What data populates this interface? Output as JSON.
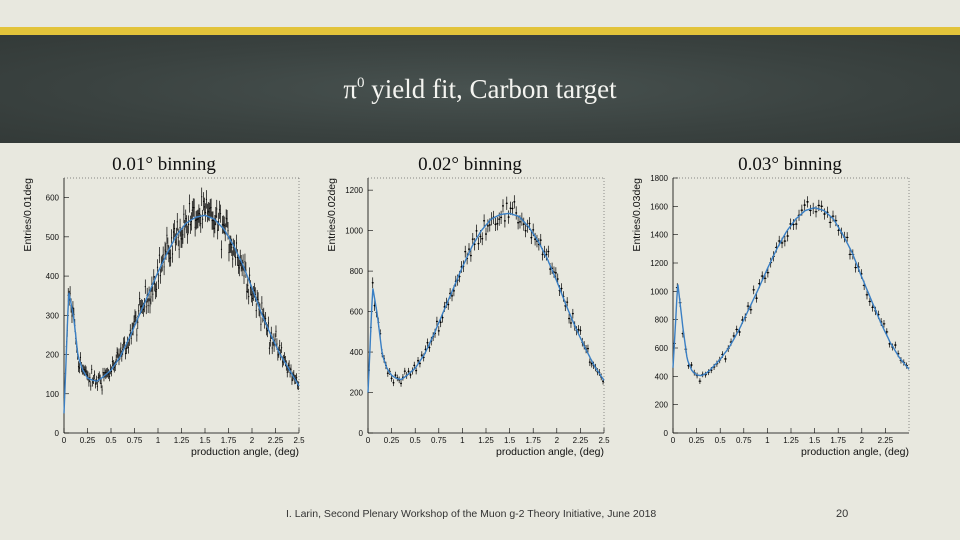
{
  "slide": {
    "title_symbol": "π",
    "title_sup": "0",
    "title_rest": " yield fit, Carbon target",
    "footer": "I. Larin, Second Plenary Workshop of the Muon g-2 Theory Initiative, June 2018",
    "page_number": "20",
    "colors": {
      "stripe": "#e2c33a",
      "header": "#3c4442",
      "fit": "#3a7fc4",
      "data": "#000000"
    }
  },
  "chart_data": [
    {
      "type": "scatter",
      "title": "0.01° binning",
      "xlabel": "production angle, (deg)",
      "ylabel": "Entries/0.01deg",
      "xlim": [
        0,
        2.5
      ],
      "ylim": [
        0,
        650
      ],
      "xticks": [
        0,
        0.25,
        0.5,
        0.75,
        1,
        1.25,
        1.5,
        1.75,
        2,
        2.25,
        2.5
      ],
      "xtick_labels": [
        "0",
        "0.25",
        "0.5",
        "0.75",
        "1",
        "1.25",
        "1.5",
        "1.75",
        "2",
        "2.25",
        "2.5"
      ],
      "yticks": [
        0,
        100,
        200,
        300,
        400,
        500,
        600
      ],
      "ytick_labels": [
        "0",
        "100",
        "200",
        "300",
        "400",
        "500",
        "600"
      ],
      "bin_width": 0.01,
      "series": [
        {
          "name": "data",
          "x": [
            0.0,
            0.05,
            0.1,
            0.15,
            0.2,
            0.25,
            0.3,
            0.35,
            0.4,
            0.5,
            0.6,
            0.7,
            0.8,
            0.9,
            1.0,
            1.1,
            1.2,
            1.3,
            1.4,
            1.5,
            1.6,
            1.7,
            1.8,
            1.9,
            2.0,
            2.1,
            2.2,
            2.3,
            2.4,
            2.5
          ],
          "y": [
            50,
            360,
            300,
            195,
            160,
            140,
            135,
            132,
            140,
            160,
            195,
            245,
            300,
            355,
            410,
            460,
            505,
            535,
            550,
            555,
            545,
            520,
            480,
            430,
            370,
            305,
            250,
            200,
            160,
            120
          ]
        },
        {
          "name": "fit",
          "x": [
            0.0,
            0.05,
            0.1,
            0.15,
            0.2,
            0.25,
            0.3,
            0.35,
            0.4,
            0.5,
            0.6,
            0.7,
            0.8,
            0.9,
            1.0,
            1.1,
            1.2,
            1.3,
            1.4,
            1.5,
            1.6,
            1.7,
            1.8,
            1.9,
            2.0,
            2.1,
            2.2,
            2.3,
            2.4,
            2.5
          ],
          "y": [
            50,
            360,
            300,
            195,
            160,
            140,
            135,
            132,
            140,
            160,
            195,
            245,
            300,
            355,
            410,
            460,
            505,
            535,
            550,
            555,
            545,
            520,
            480,
            430,
            370,
            305,
            250,
            200,
            160,
            120
          ]
        }
      ]
    },
    {
      "type": "scatter",
      "title": "0.02° binning",
      "xlabel": "production angle, (deg)",
      "ylabel": "Entries/0.02deg",
      "xlim": [
        0,
        2.5
      ],
      "ylim": [
        0,
        1260
      ],
      "xticks": [
        0,
        0.25,
        0.5,
        0.75,
        1,
        1.25,
        1.5,
        1.75,
        2,
        2.25,
        2.5
      ],
      "xtick_labels": [
        "0",
        "0.25",
        "0.5",
        "0.75",
        "1",
        "1.25",
        "1.5",
        "1.75",
        "2",
        "2.25",
        "2.5"
      ],
      "yticks": [
        0,
        200,
        400,
        600,
        800,
        1000,
        1200
      ],
      "ytick_labels": [
        "0",
        "200",
        "400",
        "600",
        "800",
        "1000",
        "1200"
      ],
      "bin_width": 0.02,
      "series": [
        {
          "name": "data",
          "x": [
            0.0,
            0.05,
            0.1,
            0.15,
            0.2,
            0.25,
            0.3,
            0.35,
            0.4,
            0.5,
            0.6,
            0.7,
            0.8,
            0.9,
            1.0,
            1.1,
            1.2,
            1.3,
            1.4,
            1.5,
            1.6,
            1.7,
            1.8,
            1.9,
            2.0,
            2.1,
            2.2,
            2.3,
            2.4,
            2.5
          ],
          "y": [
            200,
            720,
            580,
            390,
            320,
            285,
            270,
            264,
            280,
            320,
            390,
            490,
            600,
            710,
            820,
            920,
            1000,
            1055,
            1080,
            1085,
            1070,
            1020,
            950,
            860,
            750,
            630,
            520,
            420,
            330,
            260
          ]
        },
        {
          "name": "fit",
          "x": [
            0.0,
            0.05,
            0.1,
            0.15,
            0.2,
            0.25,
            0.3,
            0.35,
            0.4,
            0.5,
            0.6,
            0.7,
            0.8,
            0.9,
            1.0,
            1.1,
            1.2,
            1.3,
            1.4,
            1.5,
            1.6,
            1.7,
            1.8,
            1.9,
            2.0,
            2.1,
            2.2,
            2.3,
            2.4,
            2.5
          ],
          "y": [
            200,
            720,
            580,
            390,
            320,
            285,
            270,
            264,
            280,
            320,
            390,
            490,
            600,
            710,
            820,
            920,
            1000,
            1055,
            1080,
            1085,
            1070,
            1020,
            950,
            860,
            750,
            630,
            520,
            420,
            330,
            260
          ]
        }
      ]
    },
    {
      "type": "scatter",
      "title": "0.03° binning",
      "xlabel": "production angle, (deg)",
      "ylabel": "Entries/0.03deg",
      "xlim": [
        0,
        2.5
      ],
      "ylim": [
        0,
        1800
      ],
      "xticks": [
        0,
        0.25,
        0.5,
        0.75,
        1,
        1.25,
        1.5,
        1.75,
        2,
        2.25
      ],
      "xtick_labels": [
        "0",
        "0.25",
        "0.5",
        "0.75",
        "1",
        "1.25",
        "1.5",
        "1.75",
        "2",
        "2.25"
      ],
      "yticks": [
        0,
        200,
        400,
        600,
        800,
        1000,
        1200,
        1400,
        1600,
        1800
      ],
      "ytick_labels": [
        "0",
        "200",
        "400",
        "600",
        "800",
        "1000",
        "1200",
        "1400",
        "1600",
        "1800"
      ],
      "bin_width": 0.03,
      "series": [
        {
          "name": "data",
          "x": [
            0.0,
            0.05,
            0.1,
            0.15,
            0.2,
            0.25,
            0.3,
            0.35,
            0.4,
            0.5,
            0.6,
            0.7,
            0.8,
            0.9,
            1.0,
            1.1,
            1.2,
            1.3,
            1.4,
            1.5,
            1.6,
            1.7,
            1.8,
            1.9,
            2.0,
            2.1,
            2.2,
            2.3,
            2.4,
            2.5
          ],
          "y": [
            460,
            1060,
            770,
            520,
            440,
            410,
            405,
            420,
            450,
            520,
            610,
            730,
            870,
            1010,
            1160,
            1300,
            1420,
            1510,
            1570,
            1590,
            1570,
            1510,
            1400,
            1270,
            1100,
            940,
            780,
            640,
            530,
            450
          ]
        },
        {
          "name": "fit",
          "x": [
            0.0,
            0.05,
            0.1,
            0.15,
            0.2,
            0.25,
            0.3,
            0.35,
            0.4,
            0.5,
            0.6,
            0.7,
            0.8,
            0.9,
            1.0,
            1.1,
            1.2,
            1.3,
            1.4,
            1.5,
            1.6,
            1.7,
            1.8,
            1.9,
            2.0,
            2.1,
            2.2,
            2.3,
            2.4,
            2.5
          ],
          "y": [
            460,
            1060,
            770,
            520,
            440,
            410,
            405,
            420,
            450,
            520,
            610,
            730,
            870,
            1010,
            1160,
            1300,
            1420,
            1510,
            1570,
            1590,
            1570,
            1510,
            1400,
            1270,
            1100,
            940,
            780,
            640,
            530,
            450
          ]
        }
      ]
    }
  ]
}
